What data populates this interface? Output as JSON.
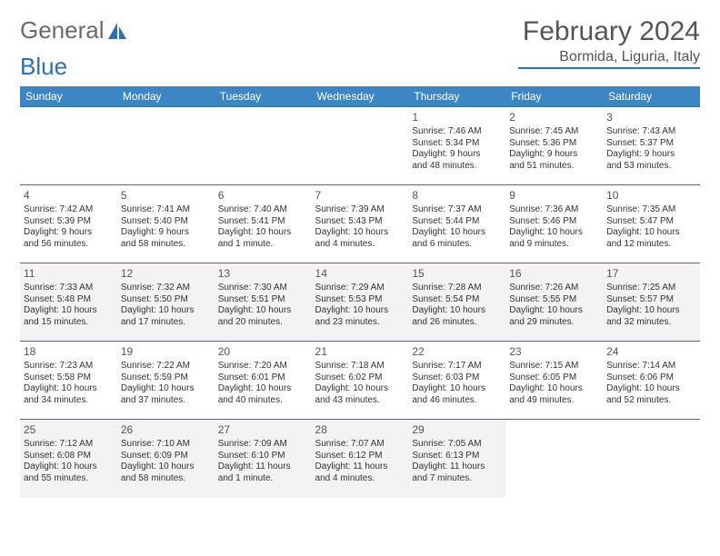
{
  "brand": {
    "word1": "General",
    "word2": "Blue",
    "logo_color": "#2f6fb5",
    "text_color": "#6a6a6a"
  },
  "title": "February 2024",
  "location": "Bormida, Liguria, Italy",
  "header_bg": "#3d86c6",
  "border_color": "#2f6fb5",
  "day_headers": [
    "Sunday",
    "Monday",
    "Tuesday",
    "Wednesday",
    "Thursday",
    "Friday",
    "Saturday"
  ],
  "weeks": [
    [
      null,
      null,
      null,
      null,
      {
        "n": "1",
        "sr": "Sunrise: 7:46 AM",
        "ss": "Sunset: 5:34 PM",
        "dl1": "Daylight: 9 hours",
        "dl2": "and 48 minutes."
      },
      {
        "n": "2",
        "sr": "Sunrise: 7:45 AM",
        "ss": "Sunset: 5:36 PM",
        "dl1": "Daylight: 9 hours",
        "dl2": "and 51 minutes."
      },
      {
        "n": "3",
        "sr": "Sunrise: 7:43 AM",
        "ss": "Sunset: 5:37 PM",
        "dl1": "Daylight: 9 hours",
        "dl2": "and 53 minutes."
      }
    ],
    [
      {
        "n": "4",
        "sr": "Sunrise: 7:42 AM",
        "ss": "Sunset: 5:39 PM",
        "dl1": "Daylight: 9 hours",
        "dl2": "and 56 minutes."
      },
      {
        "n": "5",
        "sr": "Sunrise: 7:41 AM",
        "ss": "Sunset: 5:40 PM",
        "dl1": "Daylight: 9 hours",
        "dl2": "and 58 minutes."
      },
      {
        "n": "6",
        "sr": "Sunrise: 7:40 AM",
        "ss": "Sunset: 5:41 PM",
        "dl1": "Daylight: 10 hours",
        "dl2": "and 1 minute."
      },
      {
        "n": "7",
        "sr": "Sunrise: 7:39 AM",
        "ss": "Sunset: 5:43 PM",
        "dl1": "Daylight: 10 hours",
        "dl2": "and 4 minutes."
      },
      {
        "n": "8",
        "sr": "Sunrise: 7:37 AM",
        "ss": "Sunset: 5:44 PM",
        "dl1": "Daylight: 10 hours",
        "dl2": "and 6 minutes."
      },
      {
        "n": "9",
        "sr": "Sunrise: 7:36 AM",
        "ss": "Sunset: 5:46 PM",
        "dl1": "Daylight: 10 hours",
        "dl2": "and 9 minutes."
      },
      {
        "n": "10",
        "sr": "Sunrise: 7:35 AM",
        "ss": "Sunset: 5:47 PM",
        "dl1": "Daylight: 10 hours",
        "dl2": "and 12 minutes."
      }
    ],
    [
      {
        "n": "11",
        "sr": "Sunrise: 7:33 AM",
        "ss": "Sunset: 5:48 PM",
        "dl1": "Daylight: 10 hours",
        "dl2": "and 15 minutes."
      },
      {
        "n": "12",
        "sr": "Sunrise: 7:32 AM",
        "ss": "Sunset: 5:50 PM",
        "dl1": "Daylight: 10 hours",
        "dl2": "and 17 minutes."
      },
      {
        "n": "13",
        "sr": "Sunrise: 7:30 AM",
        "ss": "Sunset: 5:51 PM",
        "dl1": "Daylight: 10 hours",
        "dl2": "and 20 minutes."
      },
      {
        "n": "14",
        "sr": "Sunrise: 7:29 AM",
        "ss": "Sunset: 5:53 PM",
        "dl1": "Daylight: 10 hours",
        "dl2": "and 23 minutes."
      },
      {
        "n": "15",
        "sr": "Sunrise: 7:28 AM",
        "ss": "Sunset: 5:54 PM",
        "dl1": "Daylight: 10 hours",
        "dl2": "and 26 minutes."
      },
      {
        "n": "16",
        "sr": "Sunrise: 7:26 AM",
        "ss": "Sunset: 5:55 PM",
        "dl1": "Daylight: 10 hours",
        "dl2": "and 29 minutes."
      },
      {
        "n": "17",
        "sr": "Sunrise: 7:25 AM",
        "ss": "Sunset: 5:57 PM",
        "dl1": "Daylight: 10 hours",
        "dl2": "and 32 minutes."
      }
    ],
    [
      {
        "n": "18",
        "sr": "Sunrise: 7:23 AM",
        "ss": "Sunset: 5:58 PM",
        "dl1": "Daylight: 10 hours",
        "dl2": "and 34 minutes."
      },
      {
        "n": "19",
        "sr": "Sunrise: 7:22 AM",
        "ss": "Sunset: 5:59 PM",
        "dl1": "Daylight: 10 hours",
        "dl2": "and 37 minutes."
      },
      {
        "n": "20",
        "sr": "Sunrise: 7:20 AM",
        "ss": "Sunset: 6:01 PM",
        "dl1": "Daylight: 10 hours",
        "dl2": "and 40 minutes."
      },
      {
        "n": "21",
        "sr": "Sunrise: 7:18 AM",
        "ss": "Sunset: 6:02 PM",
        "dl1": "Daylight: 10 hours",
        "dl2": "and 43 minutes."
      },
      {
        "n": "22",
        "sr": "Sunrise: 7:17 AM",
        "ss": "Sunset: 6:03 PM",
        "dl1": "Daylight: 10 hours",
        "dl2": "and 46 minutes."
      },
      {
        "n": "23",
        "sr": "Sunrise: 7:15 AM",
        "ss": "Sunset: 6:05 PM",
        "dl1": "Daylight: 10 hours",
        "dl2": "and 49 minutes."
      },
      {
        "n": "24",
        "sr": "Sunrise: 7:14 AM",
        "ss": "Sunset: 6:06 PM",
        "dl1": "Daylight: 10 hours",
        "dl2": "and 52 minutes."
      }
    ],
    [
      {
        "n": "25",
        "sr": "Sunrise: 7:12 AM",
        "ss": "Sunset: 6:08 PM",
        "dl1": "Daylight: 10 hours",
        "dl2": "and 55 minutes."
      },
      {
        "n": "26",
        "sr": "Sunrise: 7:10 AM",
        "ss": "Sunset: 6:09 PM",
        "dl1": "Daylight: 10 hours",
        "dl2": "and 58 minutes."
      },
      {
        "n": "27",
        "sr": "Sunrise: 7:09 AM",
        "ss": "Sunset: 6:10 PM",
        "dl1": "Daylight: 11 hours",
        "dl2": "and 1 minute."
      },
      {
        "n": "28",
        "sr": "Sunrise: 7:07 AM",
        "ss": "Sunset: 6:12 PM",
        "dl1": "Daylight: 11 hours",
        "dl2": "and 4 minutes."
      },
      {
        "n": "29",
        "sr": "Sunrise: 7:05 AM",
        "ss": "Sunset: 6:13 PM",
        "dl1": "Daylight: 11 hours",
        "dl2": "and 7 minutes."
      },
      null,
      null
    ]
  ]
}
